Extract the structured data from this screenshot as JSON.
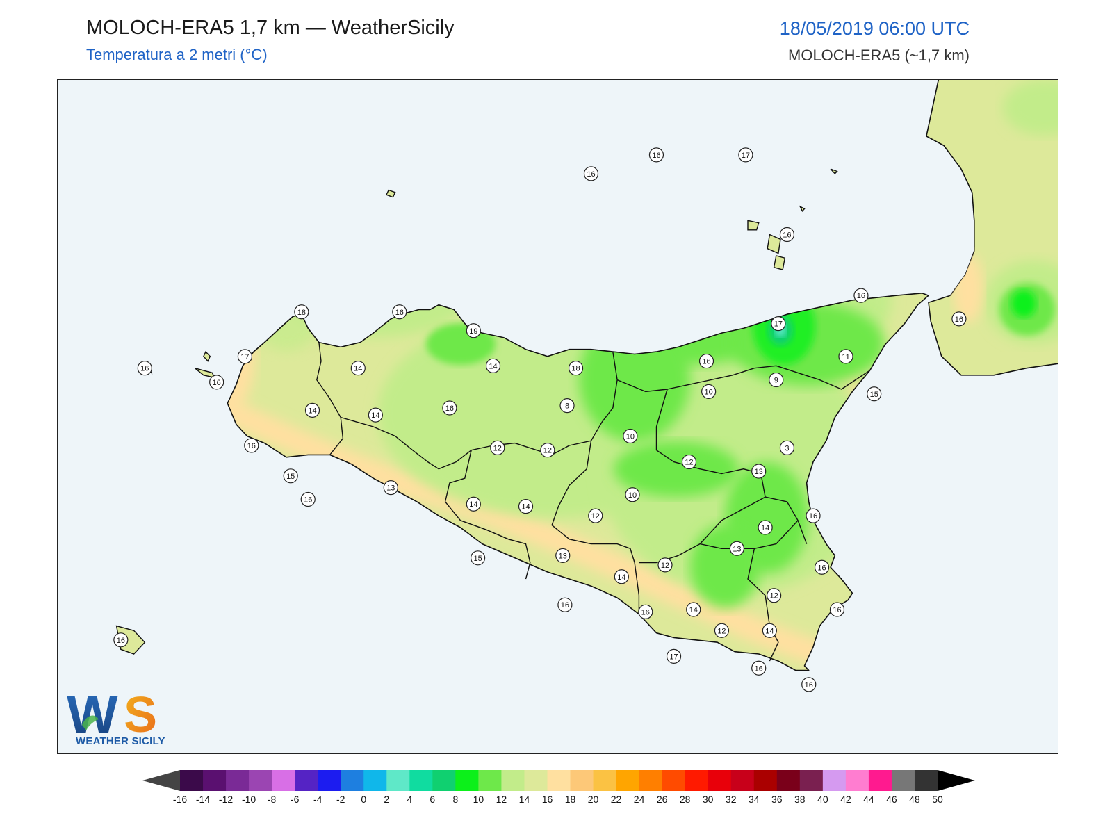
{
  "header": {
    "title": "MOLOCH-ERA5 1,7 km — WeatherSicily",
    "subtitle": "Temperatura a 2 metri (°C)",
    "datetime": "18/05/2019 06:00 UTC",
    "model": "MOLOCH-ERA5 (~1,7 km)"
  },
  "logo": {
    "initials": "WS",
    "text": "WEATHER SICILY"
  },
  "colorbar": {
    "labels": [
      "-16",
      "-14",
      "-12",
      "-10",
      "-8",
      "-6",
      "-4",
      "-2",
      "0",
      "2",
      "4",
      "6",
      "8",
      "10",
      "12",
      "14",
      "16",
      "18",
      "20",
      "22",
      "24",
      "26",
      "28",
      "30",
      "32",
      "34",
      "36",
      "38",
      "40",
      "42",
      "44",
      "46",
      "48",
      "50"
    ],
    "colors": [
      "#3b0a4a",
      "#5a1070",
      "#7a2a96",
      "#9b45b2",
      "#d86fe6",
      "#5523c4",
      "#1c1cf0",
      "#1e7fe0",
      "#10b7ea",
      "#5fe8c8",
      "#10dca0",
      "#10d070",
      "#0cf01a",
      "#6ee84a",
      "#c2ec8a",
      "#dde99a",
      "#ffe0a0",
      "#fdc878",
      "#fbc243",
      "#ffa500",
      "#ff7f00",
      "#ff4b00",
      "#ff1a00",
      "#e8000a",
      "#c8001a",
      "#aa0000",
      "#7a001a",
      "#7a2050",
      "#d59af0",
      "#ff7dd0",
      "#ff1a8f",
      "#777777",
      "#333333"
    ],
    "left_color": "#444444",
    "right_color": "#000000"
  },
  "stations": [
    {
      "label": "16",
      "lon": 14.1,
      "lat": 38.78
    },
    {
      "label": "16",
      "lon": 14.4,
      "lat": 38.86
    },
    {
      "label": "17",
      "lon": 14.81,
      "lat": 38.86
    },
    {
      "label": "16",
      "lon": 15.0,
      "lat": 38.52
    },
    {
      "label": "16",
      "lon": 15.34,
      "lat": 38.26
    },
    {
      "label": "17",
      "lon": 14.96,
      "lat": 38.14
    },
    {
      "label": "16",
      "lon": 15.79,
      "lat": 38.16
    },
    {
      "label": "18",
      "lon": 12.77,
      "lat": 38.19
    },
    {
      "label": "16",
      "lon": 13.22,
      "lat": 38.19
    },
    {
      "label": "19",
      "lon": 13.56,
      "lat": 38.11
    },
    {
      "label": "17",
      "lon": 12.51,
      "lat": 38.0
    },
    {
      "label": "16",
      "lon": 12.05,
      "lat": 37.95
    },
    {
      "label": "16",
      "lon": 12.38,
      "lat": 37.89
    },
    {
      "label": "14",
      "lon": 13.03,
      "lat": 37.95
    },
    {
      "label": "14",
      "lon": 13.65,
      "lat": 37.96
    },
    {
      "label": "18",
      "lon": 14.03,
      "lat": 37.95
    },
    {
      "label": "16",
      "lon": 14.63,
      "lat": 37.98
    },
    {
      "label": "11",
      "lon": 15.27,
      "lat": 38.0
    },
    {
      "label": "9",
      "lon": 14.95,
      "lat": 37.9
    },
    {
      "label": "10",
      "lon": 14.64,
      "lat": 37.85
    },
    {
      "label": "15",
      "lon": 15.4,
      "lat": 37.84
    },
    {
      "label": "14",
      "lon": 12.82,
      "lat": 37.77
    },
    {
      "label": "14",
      "lon": 13.11,
      "lat": 37.75
    },
    {
      "label": "16",
      "lon": 13.45,
      "lat": 37.78
    },
    {
      "label": "8",
      "lon": 13.99,
      "lat": 37.79
    },
    {
      "label": "10",
      "lon": 14.28,
      "lat": 37.66
    },
    {
      "label": "12",
      "lon": 13.67,
      "lat": 37.61
    },
    {
      "label": "12",
      "lon": 13.9,
      "lat": 37.6
    },
    {
      "label": "3",
      "lon": 15.0,
      "lat": 37.61
    },
    {
      "label": "16",
      "lon": 12.54,
      "lat": 37.62
    },
    {
      "label": "12",
      "lon": 14.55,
      "lat": 37.55
    },
    {
      "label": "13",
      "lon": 14.87,
      "lat": 37.51
    },
    {
      "label": "15",
      "lon": 12.72,
      "lat": 37.49
    },
    {
      "label": "13",
      "lon": 13.18,
      "lat": 37.44
    },
    {
      "label": "10",
      "lon": 14.29,
      "lat": 37.41
    },
    {
      "label": "16",
      "lon": 12.8,
      "lat": 37.39
    },
    {
      "label": "14",
      "lon": 13.56,
      "lat": 37.37
    },
    {
      "label": "14",
      "lon": 13.8,
      "lat": 37.36
    },
    {
      "label": "12",
      "lon": 14.12,
      "lat": 37.32
    },
    {
      "label": "16",
      "lon": 15.12,
      "lat": 37.32
    },
    {
      "label": "14",
      "lon": 14.9,
      "lat": 37.27
    },
    {
      "label": "13",
      "lon": 14.77,
      "lat": 37.18
    },
    {
      "label": "15",
      "lon": 13.58,
      "lat": 37.14
    },
    {
      "label": "13",
      "lon": 13.97,
      "lat": 37.15
    },
    {
      "label": "12",
      "lon": 14.44,
      "lat": 37.11
    },
    {
      "label": "16",
      "lon": 15.16,
      "lat": 37.1
    },
    {
      "label": "14",
      "lon": 14.24,
      "lat": 37.06
    },
    {
      "label": "12",
      "lon": 14.94,
      "lat": 36.98
    },
    {
      "label": "14",
      "lon": 14.57,
      "lat": 36.92
    },
    {
      "label": "16",
      "lon": 13.98,
      "lat": 36.94
    },
    {
      "label": "16",
      "lon": 14.35,
      "lat": 36.91
    },
    {
      "label": "16",
      "lon": 15.23,
      "lat": 36.92
    },
    {
      "label": "14",
      "lon": 14.92,
      "lat": 36.83
    },
    {
      "label": "12",
      "lon": 14.7,
      "lat": 36.83
    },
    {
      "label": "17",
      "lon": 14.48,
      "lat": 36.72
    },
    {
      "label": "16",
      "lon": 14.87,
      "lat": 36.67
    },
    {
      "label": "16",
      "lon": 15.1,
      "lat": 36.6
    },
    {
      "label": "16",
      "lon": 11.94,
      "lat": 36.79
    }
  ]
}
